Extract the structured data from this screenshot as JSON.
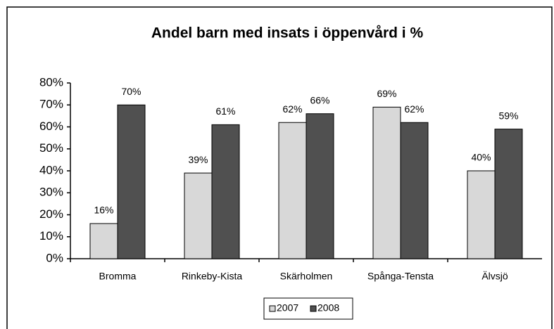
{
  "chart_data": {
    "type": "bar",
    "title": "Andel barn med insats i öppenvård i %",
    "categories": [
      "Bromma",
      "Rinkeby-Kista",
      "Skärholmen",
      "Spånga-Tensta",
      "Älvsjö"
    ],
    "series": [
      {
        "name": "2007",
        "color": "#d8d8d8",
        "values": [
          16,
          39,
          62,
          69,
          40
        ],
        "value_labels": [
          "16%",
          "39%",
          "62%",
          "69%",
          "40%"
        ]
      },
      {
        "name": "2008",
        "color": "#505050",
        "values": [
          70,
          61,
          66,
          62,
          59
        ],
        "value_labels": [
          "70%",
          "61%",
          "66%",
          "62%",
          "59%"
        ]
      }
    ],
    "ylim": [
      0,
      80
    ],
    "yticks": [
      {
        "value": 0,
        "label": "0%"
      },
      {
        "value": 10,
        "label": "10%"
      },
      {
        "value": 20,
        "label": "20%"
      },
      {
        "value": 30,
        "label": "30%"
      },
      {
        "value": 40,
        "label": "40%"
      },
      {
        "value": 50,
        "label": "50%"
      },
      {
        "value": 60,
        "label": "60%"
      },
      {
        "value": 70,
        "label": "70%"
      },
      {
        "value": 80,
        "label": "80%"
      }
    ],
    "legend": "bottom"
  }
}
